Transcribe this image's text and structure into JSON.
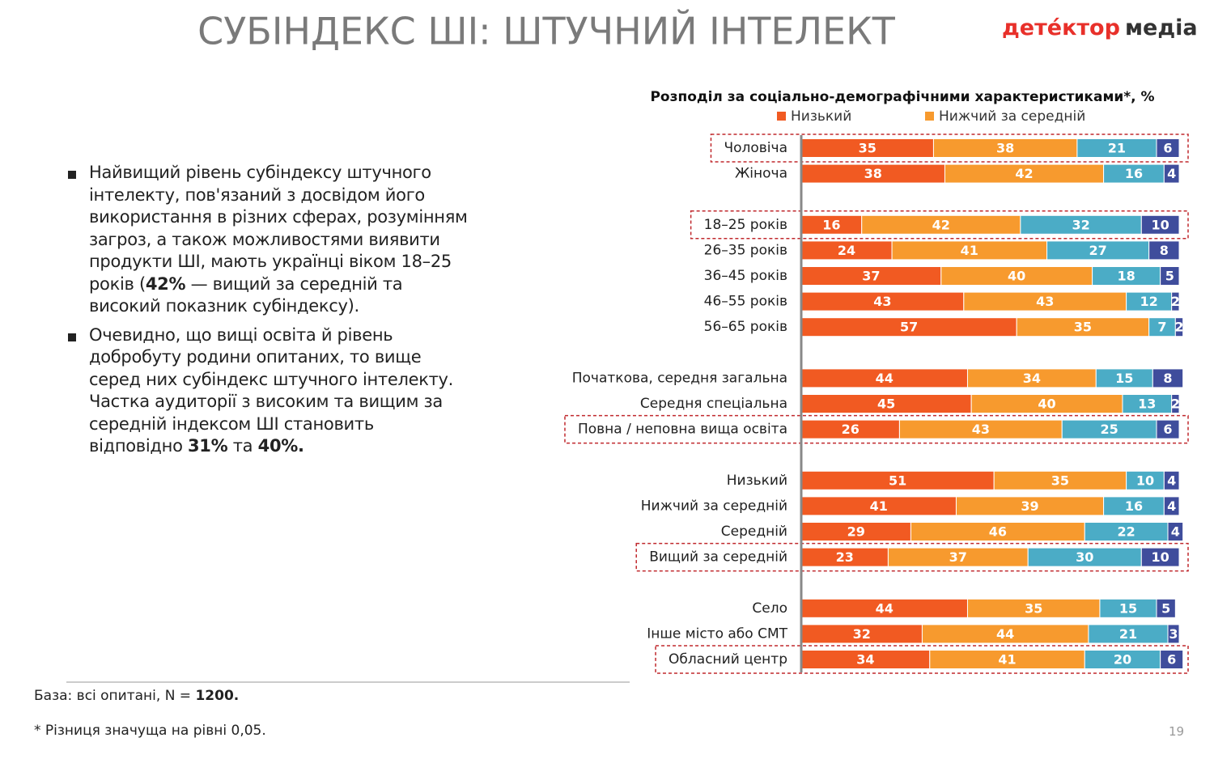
{
  "header": {
    "title": "СУБІНДЕКС ШІ: ШТУЧНИЙ ІНТЕЛЕКТ",
    "logo_a": "детéктор",
    "logo_b": "медіа"
  },
  "bullets": [
    [
      {
        "text": "Найвищий рівень субіндексу штучного інтелекту, пов'язаний з досвідом його використання в різних сферах, розумінням загроз, а також можливостями виявити продукти ШІ, мають українці віком 18–25 років ("
      },
      {
        "text": "42%",
        "bold": true
      },
      {
        "text": " — вищий за середній та високий показник субіндексу)."
      }
    ],
    [
      {
        "text": "Очевидно, що вищі освіта й рівень добробуту родини опитаних, то вище серед них субіндекс штучного інтелекту. Частка аудиторії з високим та вищим за середній індексом ШІ становить відповідно "
      },
      {
        "text": "31%",
        "bold": true
      },
      {
        "text": " та "
      },
      {
        "text": "40%.",
        "bold": true
      }
    ]
  ],
  "footer": {
    "base": [
      {
        "text": "База: всі опитані, N = "
      },
      {
        "text": "1200.",
        "bold": true
      }
    ],
    "note": "* Різниця значуща на рівні 0,05.",
    "page": "19"
  },
  "chart_data": {
    "type": "bar",
    "orientation": "horizontal",
    "stacked": true,
    "title": "Розподіл за соціально-демографічними характеристиками*, %",
    "xlim": [
      0,
      100
    ],
    "categories": [
      "Чоловіча",
      "Жіноча",
      null,
      "18–25 років",
      "26–35 років",
      "36–45 років",
      "46–55 років",
      "56–65 років",
      null,
      "Початкова, середня загальна",
      "Середня спеціальна",
      "Повна / неповна вища освіта",
      null,
      "Низький",
      "Нижчий за середній",
      "Середній",
      "Вищий за середній",
      null,
      "Село",
      "Інше місто або СМТ",
      "Обласний центр"
    ],
    "highlight": [
      0,
      3,
      11,
      16,
      20
    ],
    "series": [
      {
        "name": "Низький",
        "color": "#f15a22",
        "values": [
          35,
          38,
          null,
          16,
          24,
          37,
          43,
          57,
          null,
          44,
          45,
          26,
          null,
          51,
          41,
          29,
          23,
          null,
          44,
          32,
          34
        ]
      },
      {
        "name": "Нижчий за середній",
        "color": "#f79a2e",
        "values": [
          38,
          42,
          null,
          42,
          41,
          40,
          43,
          35,
          null,
          34,
          40,
          43,
          null,
          35,
          39,
          46,
          37,
          null,
          35,
          44,
          41
        ]
      },
      {
        "color": "#4bacc6",
        "values": [
          21,
          16,
          null,
          32,
          27,
          18,
          12,
          7,
          null,
          15,
          13,
          25,
          null,
          10,
          16,
          22,
          30,
          null,
          15,
          21,
          20
        ]
      },
      {
        "color": "#3f4d9c",
        "values": [
          6,
          4,
          null,
          10,
          8,
          5,
          2,
          2,
          null,
          8,
          2,
          6,
          null,
          4,
          4,
          4,
          10,
          null,
          5,
          3,
          6
        ]
      }
    ]
  }
}
